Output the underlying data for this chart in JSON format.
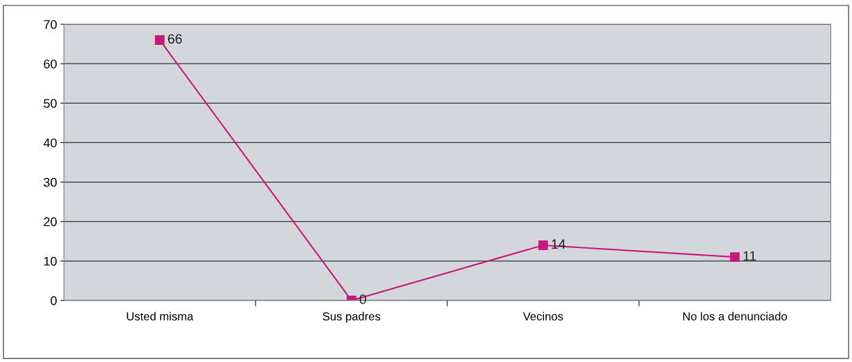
{
  "chart_data": {
    "type": "line",
    "categories": [
      "Usted misma",
      "Sus padres",
      "Vecinos",
      "No los a denunciado"
    ],
    "series": [
      {
        "color": "#c8197a",
        "values": [
          66,
          0,
          14,
          11
        ]
      }
    ],
    "ylim": [
      0,
      70
    ],
    "yticks": [
      0,
      10,
      20,
      30,
      40,
      50,
      60,
      70
    ],
    "grid": "y",
    "marker": "square",
    "line_style": "solid",
    "data_labels": true,
    "legend": false
  }
}
